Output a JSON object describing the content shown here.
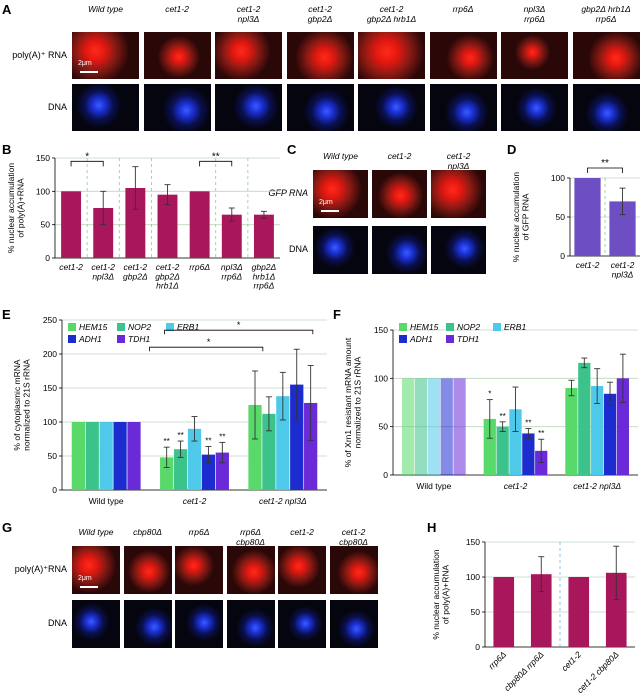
{
  "panels": {
    "A": "A",
    "B": "B",
    "C": "C",
    "D": "D",
    "E": "E",
    "F": "F",
    "G": "G",
    "H": "H"
  },
  "panelA": {
    "headers": [
      "Wild type",
      "cet1-2",
      "cet1-2\nnpl3Δ",
      "cet1-2\ngbp2Δ",
      "cet1-2\ngbp2Δ hrb1Δ",
      "rrp6Δ",
      "npl3Δ\nrrp6Δ",
      "gbp2Δ hrb1Δ\nrrp6Δ"
    ],
    "row1": "poly(A)⁺ RNA",
    "row2": "DNA",
    "scale": "2μm"
  },
  "panelC": {
    "headers": [
      "Wild type",
      "cet1-2",
      "cet1-2\nnpl3Δ"
    ],
    "row1": "GFP RNA",
    "row2": "DNA",
    "scale": "2μm"
  },
  "panelG": {
    "headers": [
      "Wild type",
      "cbp80Δ",
      "rrp6Δ",
      "rrp6Δ\ncbp80Δ",
      "cet1-2",
      "cet1-2\ncbp80Δ"
    ],
    "row1": "poly(A)⁺RNA",
    "row2": "DNA",
    "scale": "2μm"
  },
  "colors": {
    "bar": "#a8175c",
    "barD": "#6e4fc3",
    "grid": "#bcd9bc",
    "green": "#58d96a",
    "teal": "#3cc38b",
    "cyan": "#4fc9ea",
    "blue": "#1d2ccf",
    "violet": "#6b2ad8"
  },
  "chart_data": [
    {
      "id": "B",
      "type": "bar",
      "ylabel": "% nuclear accumulation\nof poly(A)+RNA",
      "ylim": [
        0,
        150
      ],
      "yticks": [
        0,
        50,
        100,
        150
      ],
      "categories": [
        "cet1-2",
        "cet1-2\nnpl3Δ",
        "cet1-2\ngbp2Δ",
        "cet1-2\ngbp2Δ\nhrb1Δ",
        "rrp6Δ",
        "npl3Δ\nrrp6Δ",
        "gbp2Δ\nhrb1Δ\nrrp6Δ"
      ],
      "values": [
        100,
        75,
        105,
        95,
        100,
        65,
        65
      ],
      "errors": [
        0,
        25,
        32,
        15,
        0,
        10,
        5
      ],
      "annotations": [
        "*",
        "**"
      ]
    },
    {
      "id": "D",
      "type": "bar",
      "ylabel": "% nuclear accumulation\nof GFP RNA",
      "ylim": [
        0,
        100
      ],
      "yticks": [
        0,
        50,
        100
      ],
      "categories": [
        "cet1-2",
        "cet1-2\nnpl3Δ"
      ],
      "values": [
        100,
        70
      ],
      "errors": [
        0,
        17
      ],
      "annotations": [
        "**"
      ]
    },
    {
      "id": "E",
      "type": "bar",
      "ylabel": "% of cytoplasmic mRNA\nnormalized to 21S rRNA",
      "ylim": [
        0,
        250
      ],
      "yticks": [
        0,
        50,
        100,
        150,
        200,
        250
      ],
      "categories": [
        "Wild type",
        "cet1-2",
        "cet1-2 npl3Δ"
      ],
      "series": [
        {
          "name": "HEM15",
          "values": [
            100,
            48,
            125
          ],
          "errors": [
            0,
            15,
            50
          ]
        },
        {
          "name": "NOP2",
          "values": [
            100,
            60,
            112
          ],
          "errors": [
            0,
            12,
            25
          ]
        },
        {
          "name": "ERB1",
          "values": [
            100,
            90,
            138
          ],
          "errors": [
            0,
            18,
            35
          ]
        },
        {
          "name": "ADH1",
          "values": [
            100,
            52,
            155
          ],
          "errors": [
            0,
            12,
            52
          ]
        },
        {
          "name": "TDH1",
          "values": [
            100,
            55,
            128
          ],
          "errors": [
            0,
            15,
            55
          ]
        }
      ],
      "sig": [
        "**",
        "**",
        "",
        "**",
        "**"
      ],
      "annotations": [
        "*",
        "*"
      ]
    },
    {
      "id": "F",
      "type": "bar",
      "ylabel": "% of Xrn1 resistant mRNA amount\nnormalized to 21S rRNA",
      "ylim": [
        0,
        150
      ],
      "yticks": [
        0,
        50,
        100,
        150
      ],
      "categories": [
        "Wild type",
        "cet1-2",
        "cet1-2 npl3Δ"
      ],
      "series": [
        {
          "name": "HEM15",
          "values": [
            100,
            58,
            90
          ],
          "errors": [
            0,
            20,
            8
          ]
        },
        {
          "name": "NOP2",
          "values": [
            100,
            50,
            116
          ],
          "errors": [
            0,
            5,
            5
          ]
        },
        {
          "name": "ERB1",
          "values": [
            100,
            68,
            92
          ],
          "errors": [
            0,
            23,
            18
          ]
        },
        {
          "name": "ADH1",
          "values": [
            100,
            43,
            84
          ],
          "errors": [
            0,
            5,
            12
          ]
        },
        {
          "name": "TDH1",
          "values": [
            100,
            25,
            100
          ],
          "errors": [
            0,
            12,
            25
          ]
        }
      ],
      "sig": [
        "*",
        "**",
        "",
        "**",
        "**"
      ]
    },
    {
      "id": "H",
      "type": "bar",
      "ylabel": "% nuclear accumulation\nof poly(A)+RNA",
      "ylim": [
        0,
        150
      ],
      "yticks": [
        0,
        50,
        100,
        150
      ],
      "categories": [
        "rrp6Δ",
        "cbp80Δ rrp6Δ",
        "cet1-2",
        "cet1-2 cbp80Δ"
      ],
      "values": [
        100,
        104,
        100,
        106
      ],
      "errors": [
        0,
        25,
        0,
        38
      ]
    }
  ]
}
